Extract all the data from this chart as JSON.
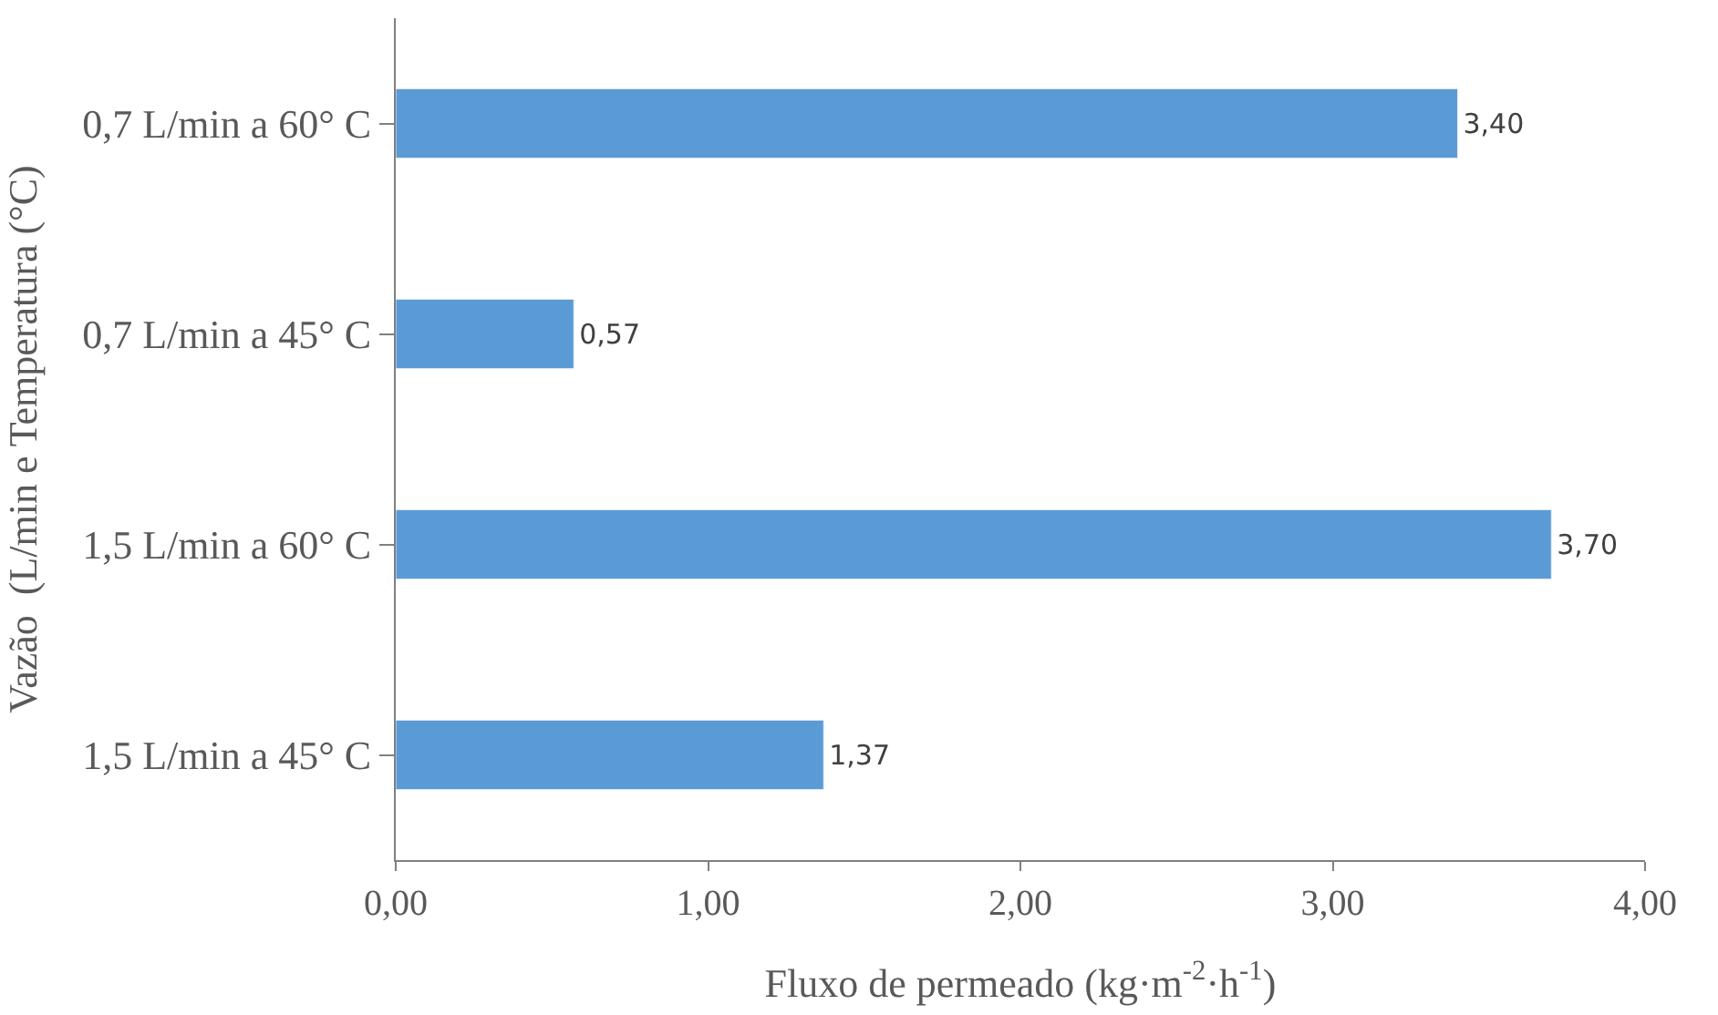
{
  "chart_data": {
    "type": "bar",
    "orientation": "horizontal",
    "categories": [
      "0,7 L/min a 60° C",
      "0,7 L/min a 45° C",
      "1,5 L/min a 60° C",
      "1,5 L/min a 45° C"
    ],
    "values": [
      3.4,
      0.57,
      3.7,
      1.37
    ],
    "value_labels": [
      "3,40",
      "0,57",
      "3,70",
      "1,37"
    ],
    "color": "#5b9bd5",
    "xlabel": "Fluxo de permeado (kg·m$^{-2}$·h$^{-1}$)",
    "ylabel": "Vazão  (L/min e Temperatura (°C)",
    "xlim": [
      0,
      4
    ],
    "xticks": [
      {
        "value": 0,
        "label": "0,00"
      },
      {
        "value": 1,
        "label": "1,00"
      },
      {
        "value": 2,
        "label": "2,00"
      },
      {
        "value": 3,
        "label": "3,00"
      },
      {
        "value": 4,
        "label": "4,00"
      }
    ],
    "marker": "none"
  }
}
